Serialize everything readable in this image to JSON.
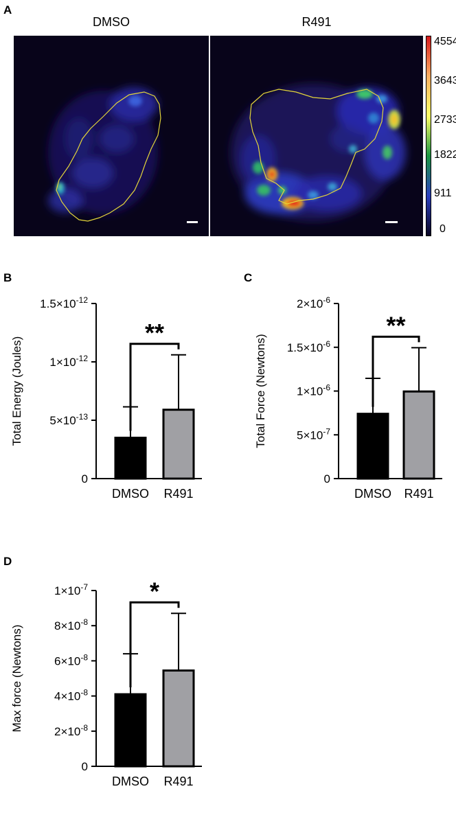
{
  "panels": {
    "a": {
      "letter": "A",
      "images": [
        {
          "title": "DMSO"
        },
        {
          "title": "R491"
        }
      ],
      "colorbar": {
        "ticks": [
          "4554",
          "3643",
          "2733",
          "1822",
          "911",
          "0"
        ],
        "colors": [
          "#d7191c",
          "#fdae61",
          "#ffff66",
          "#1a9641",
          "#2b3fbf",
          "#0a0524"
        ]
      }
    },
    "b": {
      "letter": "B"
    },
    "c": {
      "letter": "C"
    },
    "d": {
      "letter": "D"
    }
  },
  "chart_data": [
    {
      "id": "b",
      "type": "bar",
      "categories": [
        "DMSO",
        "R491"
      ],
      "values": [
        3.5e-13,
        5.9e-13
      ],
      "errors": [
        2.65e-13,
        4.7e-13
      ],
      "colors": [
        "#000000",
        "#a0a0a4"
      ],
      "ylabel": "Total Energy (Joules)",
      "ylim": [
        0,
        1.5e-12
      ],
      "yticks": [
        0,
        5e-13,
        1e-12,
        1.5e-12
      ],
      "ytick_labels": [
        {
          "base": "0",
          "exp": ""
        },
        {
          "base": "5×10",
          "exp": "-13"
        },
        {
          "base": "1×10",
          "exp": "-12"
        },
        {
          "base": "1.5×10",
          "exp": "-12"
        }
      ],
      "significance": "**"
    },
    {
      "id": "c",
      "type": "bar",
      "categories": [
        "DMSO",
        "R491"
      ],
      "values": [
        7.4e-07,
        9.95e-07
      ],
      "errors": [
        4.05e-07,
        5e-07
      ],
      "colors": [
        "#000000",
        "#a0a0a4"
      ],
      "ylabel": "Total Force (Newtons)",
      "ylim": [
        0,
        2e-06
      ],
      "yticks": [
        0,
        5e-07,
        1e-06,
        1.5e-06,
        2e-06
      ],
      "ytick_labels": [
        {
          "base": "0",
          "exp": ""
        },
        {
          "base": "5×10",
          "exp": "-7"
        },
        {
          "base": "1×10",
          "exp": "-6"
        },
        {
          "base": "1.5×10",
          "exp": "-6"
        },
        {
          "base": "2×10",
          "exp": "-6"
        }
      ],
      "significance": "**"
    },
    {
      "id": "d",
      "type": "bar",
      "categories": [
        "DMSO",
        "R491"
      ],
      "values": [
        4.1e-08,
        5.45e-08
      ],
      "errors": [
        2.3e-08,
        3.25e-08
      ],
      "colors": [
        "#000000",
        "#a0a0a4"
      ],
      "ylabel": "Max force (Newtons)",
      "ylim": [
        0,
        1e-07
      ],
      "yticks": [
        0,
        2e-08,
        4e-08,
        6e-08,
        8e-08,
        1e-07
      ],
      "ytick_labels": [
        {
          "base": "0",
          "exp": ""
        },
        {
          "base": "2×10",
          "exp": "-8"
        },
        {
          "base": "4×10",
          "exp": "-8"
        },
        {
          "base": "6×10",
          "exp": "-8"
        },
        {
          "base": "8×10",
          "exp": "-8"
        },
        {
          "base": "1×10",
          "exp": "-7"
        }
      ],
      "significance": "*"
    }
  ]
}
